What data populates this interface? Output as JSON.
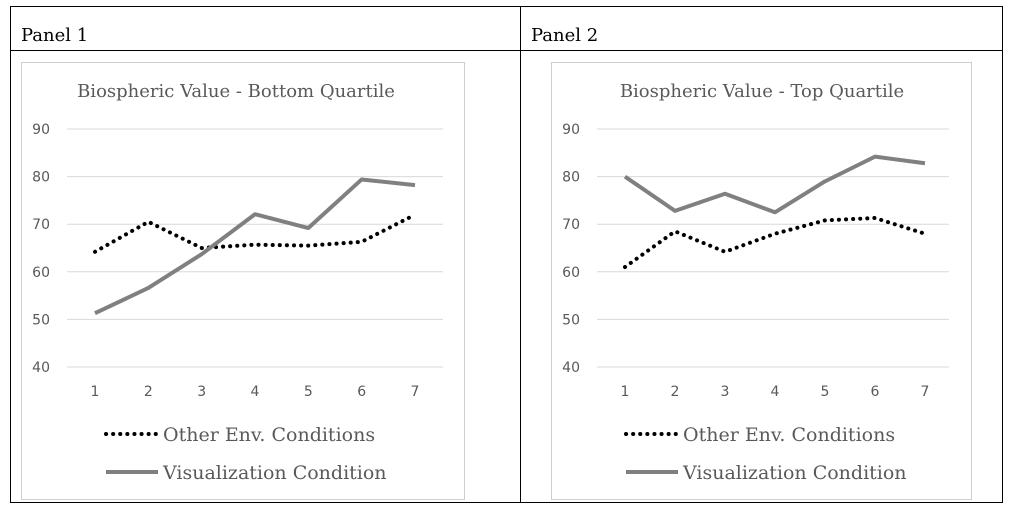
{
  "panels": [
    {
      "label": "Panel 1"
    },
    {
      "label": "Panel 2"
    }
  ],
  "chart_data": [
    {
      "type": "line",
      "title": "Biospheric Value - Bottom Quartile",
      "x": [
        1,
        2,
        3,
        4,
        5,
        6,
        7
      ],
      "ylim": [
        40,
        90
      ],
      "yticks": [
        40,
        50,
        60,
        70,
        80,
        90
      ],
      "grid": true,
      "legend_position": "bottom",
      "series": [
        {
          "name": "Other Env. Conditions",
          "style": "dotted",
          "color": "#000000",
          "values": [
            64.2,
            70.5,
            65.0,
            65.7,
            65.5,
            66.3,
            72.0
          ]
        },
        {
          "name": "Visualization Condition",
          "style": "solid",
          "color": "#808080",
          "values": [
            51.3,
            56.6,
            63.7,
            72.1,
            69.2,
            79.4,
            78.2
          ]
        }
      ]
    },
    {
      "type": "line",
      "title": "Biospheric Value - Top Quartile",
      "x": [
        1,
        2,
        3,
        4,
        5,
        6,
        7
      ],
      "ylim": [
        40,
        90
      ],
      "yticks": [
        40,
        50,
        60,
        70,
        80,
        90
      ],
      "grid": true,
      "legend_position": "bottom",
      "series": [
        {
          "name": "Other Env. Conditions",
          "style": "dotted",
          "color": "#000000",
          "values": [
            61.0,
            68.5,
            64.2,
            68.0,
            70.8,
            71.3,
            68.0
          ]
        },
        {
          "name": "Visualization Condition",
          "style": "solid",
          "color": "#808080",
          "values": [
            80.0,
            72.8,
            76.4,
            72.5,
            79.0,
            84.2,
            82.8
          ]
        }
      ]
    }
  ]
}
